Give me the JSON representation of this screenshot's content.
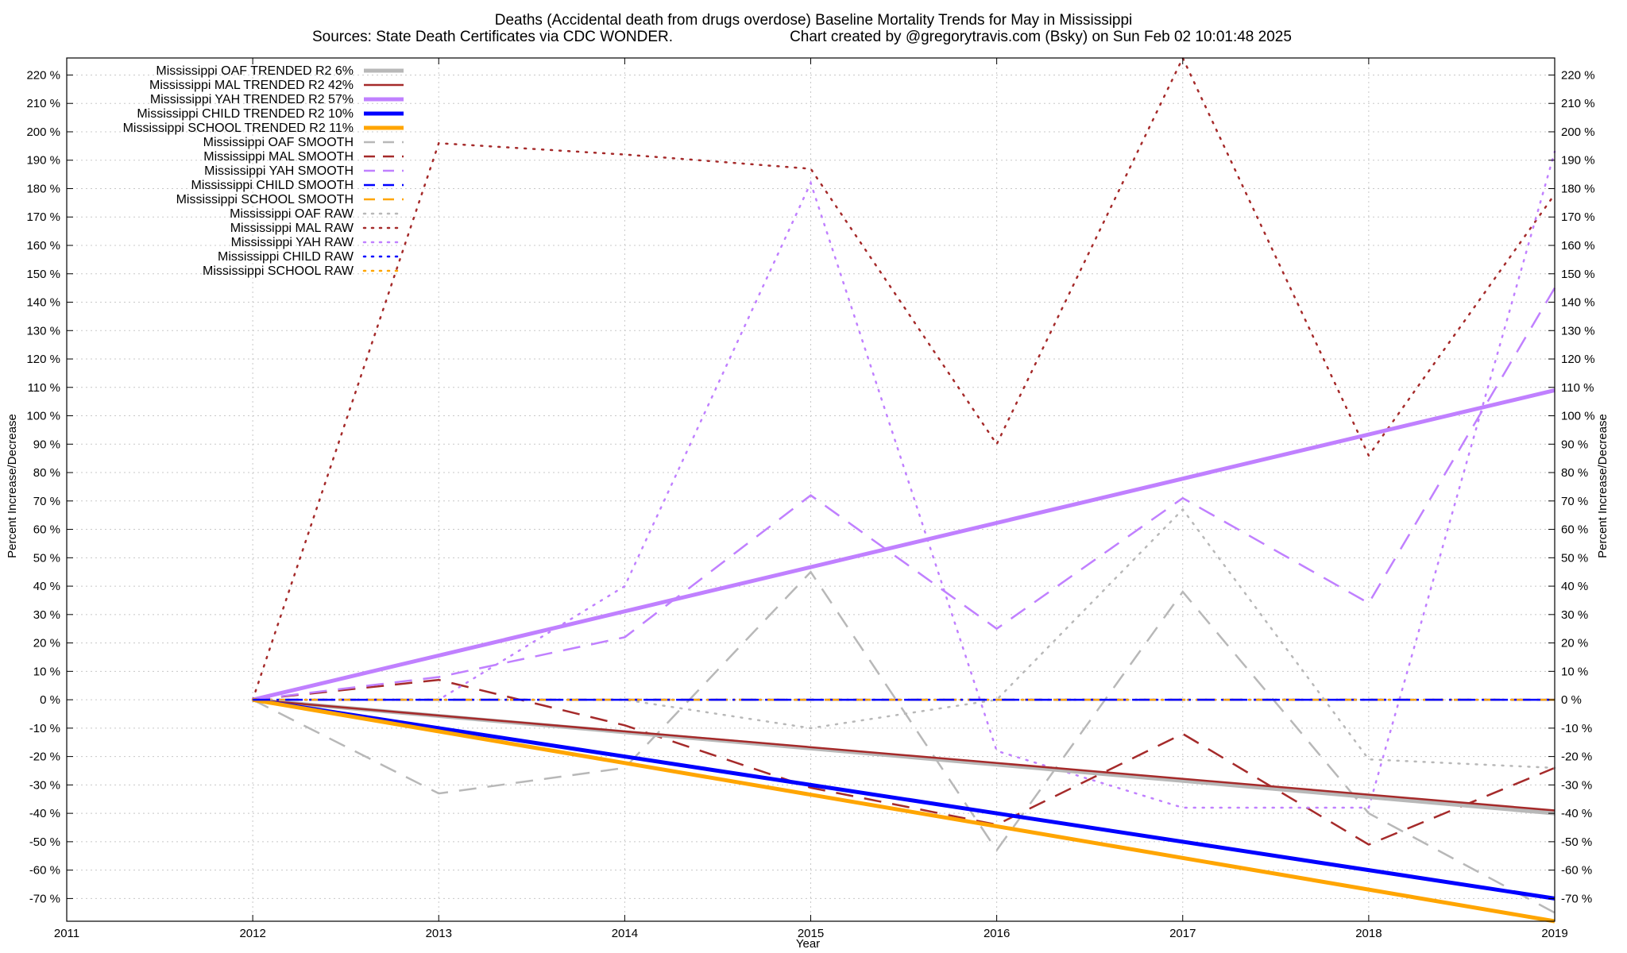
{
  "chart_data": {
    "type": "line",
    "title": "Deaths (Accidental death from drugs overdose)  Baseline Mortality Trends for May in Mississippi",
    "subtitle_left": "Sources: State Death Certificates via CDC WONDER.",
    "subtitle_right": "Chart created by @gregorytravis.com (Bsky) on Sun Feb 02 10:01:48 2025",
    "xlabel": "Year",
    "ylabel_left": "Percent Increase/Decrease",
    "ylabel_right": "Percent Increase/Decrease",
    "xlim": [
      2011,
      2019
    ],
    "ylim": [
      -78,
      226
    ],
    "x_ticks": [
      "2011",
      "2012",
      "2013",
      "2014",
      "2015",
      "2016",
      "2017",
      "2018",
      "2019"
    ],
    "y_ticks": [
      "-70 %",
      "-60 %",
      "-50 %",
      "-40 %",
      "-30 %",
      "-20 %",
      "-10 %",
      "0 %",
      "10 %",
      "20 %",
      "30 %",
      "40 %",
      "50 %",
      "60 %",
      "70 %",
      "80 %",
      "90 %",
      "100 %",
      "110 %",
      "120 %",
      "130 %",
      "140 %",
      "150 %",
      "160 %",
      "170 %",
      "180 %",
      "190 %",
      "200 %",
      "210 %",
      "220 %"
    ],
    "y_tick_values": [
      -70,
      -60,
      -50,
      -40,
      -30,
      -20,
      -10,
      0,
      10,
      20,
      30,
      40,
      50,
      60,
      70,
      80,
      90,
      100,
      110,
      120,
      130,
      140,
      150,
      160,
      170,
      180,
      190,
      200,
      210,
      220
    ],
    "grid": true,
    "legend_position": "top-left",
    "series": [
      {
        "name": "Mississippi OAF TRENDED R2   6%",
        "color": "#b8b8b8",
        "style": "solid",
        "width": 5,
        "x": [
          2012,
          2019
        ],
        "y": [
          0,
          -40
        ]
      },
      {
        "name": "Mississippi MAL TRENDED R2  42%",
        "color": "#a52a2a",
        "style": "solid",
        "width": 2.5,
        "x": [
          2012,
          2019
        ],
        "y": [
          0,
          -39
        ]
      },
      {
        "name": "Mississippi YAH TRENDED R2  57%",
        "color": "#c080ff",
        "style": "solid",
        "width": 5,
        "x": [
          2012,
          2019
        ],
        "y": [
          0,
          109
        ]
      },
      {
        "name": "Mississippi CHILD TRENDED R2  10%",
        "color": "#0000ff",
        "style": "solid",
        "width": 5,
        "x": [
          2012,
          2019
        ],
        "y": [
          0,
          -70
        ]
      },
      {
        "name": "Mississippi SCHOOL TRENDED R2  11%",
        "color": "#ffa500",
        "style": "solid",
        "width": 5,
        "x": [
          2012,
          2019
        ],
        "y": [
          0,
          -78
        ]
      },
      {
        "name": "Mississippi OAF SMOOTH",
        "color": "#b8b8b8",
        "style": "dashed",
        "width": 2.5,
        "x": [
          2012,
          2013,
          2014,
          2015,
          2016,
          2017,
          2018,
          2019
        ],
        "y": [
          0,
          -33,
          -24,
          45,
          -53,
          38,
          -40,
          -75
        ]
      },
      {
        "name": "Mississippi MAL SMOOTH",
        "color": "#a52a2a",
        "style": "dashed",
        "width": 2.5,
        "x": [
          2012,
          2013,
          2014,
          2015,
          2016,
          2017,
          2018,
          2019
        ],
        "y": [
          0,
          7,
          -9,
          -31,
          -44,
          -12,
          -51,
          -24
        ]
      },
      {
        "name": "Mississippi YAH SMOOTH",
        "color": "#c080ff",
        "style": "dashed",
        "width": 2.5,
        "x": [
          2012,
          2013,
          2014,
          2015,
          2016,
          2017,
          2018,
          2019
        ],
        "y": [
          0,
          8,
          22,
          72,
          25,
          71,
          34,
          145
        ]
      },
      {
        "name": "Mississippi CHILD SMOOTH",
        "color": "#0000ff",
        "style": "dashed",
        "width": 2.5,
        "x": [
          2012,
          2013,
          2014,
          2015,
          2016,
          2017,
          2018,
          2019
        ],
        "y": [
          0,
          0,
          0,
          0,
          0,
          0,
          0,
          0
        ]
      },
      {
        "name": "Mississippi SCHOOL SMOOTH",
        "color": "#ffa500",
        "style": "dashed",
        "width": 2.5,
        "x": [
          2012,
          2013,
          2014,
          2015,
          2016,
          2017,
          2018,
          2019
        ],
        "y": [
          0,
          0,
          0,
          0,
          0,
          0,
          0,
          0
        ]
      },
      {
        "name": "Mississippi OAF RAW",
        "color": "#b8b8b8",
        "style": "dotted",
        "width": 2.5,
        "x": [
          2012,
          2013,
          2014,
          2015,
          2016,
          2017,
          2018,
          2019
        ],
        "y": [
          0,
          0,
          0,
          -10,
          0,
          67,
          -21,
          -24
        ]
      },
      {
        "name": "Mississippi MAL RAW",
        "color": "#a52a2a",
        "style": "dotted",
        "width": 2.5,
        "x": [
          2012,
          2013,
          2014,
          2015,
          2016,
          2017,
          2018,
          2019
        ],
        "y": [
          0,
          196,
          192,
          187,
          90,
          226,
          86,
          178
        ]
      },
      {
        "name": "Mississippi YAH RAW",
        "color": "#c080ff",
        "style": "dotted",
        "width": 2.5,
        "x": [
          2012,
          2013,
          2014,
          2015,
          2016,
          2017,
          2018,
          2019
        ],
        "y": [
          0,
          0,
          40,
          182,
          -18,
          -38,
          -38,
          193
        ]
      },
      {
        "name": "Mississippi CHILD RAW",
        "color": "#0000ff",
        "style": "dotted",
        "width": 2.5,
        "x": [
          2012,
          2013,
          2014,
          2015,
          2016,
          2017,
          2018,
          2019
        ],
        "y": [
          0,
          0,
          0,
          0,
          0,
          0,
          0,
          0
        ]
      },
      {
        "name": "Mississippi SCHOOL RAW",
        "color": "#ffa500",
        "style": "dotted",
        "width": 2.5,
        "x": [
          2012,
          2013,
          2014,
          2015,
          2016,
          2017,
          2018,
          2019
        ],
        "y": [
          0,
          0,
          0,
          0,
          0,
          0,
          0,
          0
        ]
      }
    ]
  }
}
